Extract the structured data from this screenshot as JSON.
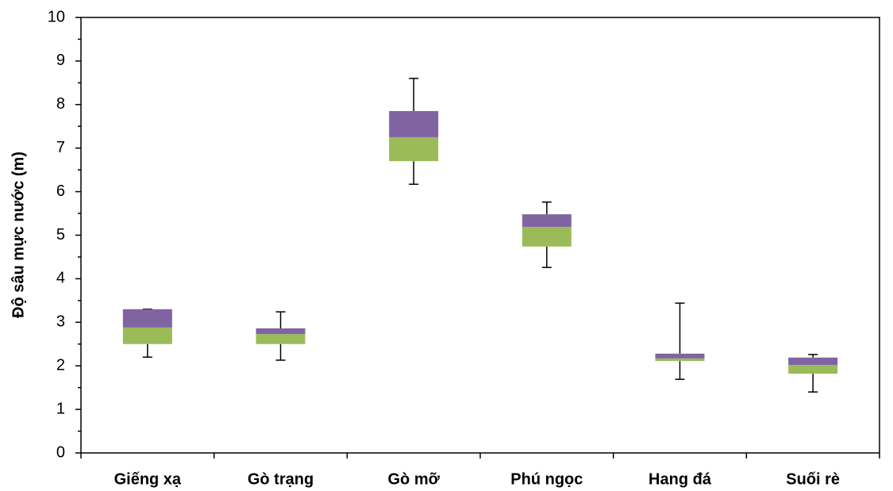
{
  "chart_data": {
    "type": "box",
    "y_label": "Độ sâu mực nước (m)",
    "categories": [
      "Giếng xạ",
      "Gò trạng",
      "Gò mỡ",
      "Phú ngọc",
      "Hang đá",
      "Suối rè"
    ],
    "min": [
      2.2,
      2.13,
      6.17,
      4.26,
      1.69,
      1.4
    ],
    "q1": [
      2.5,
      2.5,
      6.7,
      4.74,
      2.11,
      1.82
    ],
    "median": [
      2.88,
      2.73,
      7.25,
      5.19,
      2.17,
      2.02
    ],
    "q3": [
      3.3,
      2.86,
      7.85,
      5.48,
      2.28,
      2.19
    ],
    "max": [
      3.3,
      3.24,
      8.6,
      5.76,
      3.44,
      2.26
    ],
    "lower_color": "#9bbb59",
    "upper_color": "#8064a2",
    "ylim": [
      0,
      10
    ],
    "yticks": [
      0,
      1,
      2,
      3,
      4,
      5,
      6,
      7,
      8,
      9,
      10
    ]
  }
}
